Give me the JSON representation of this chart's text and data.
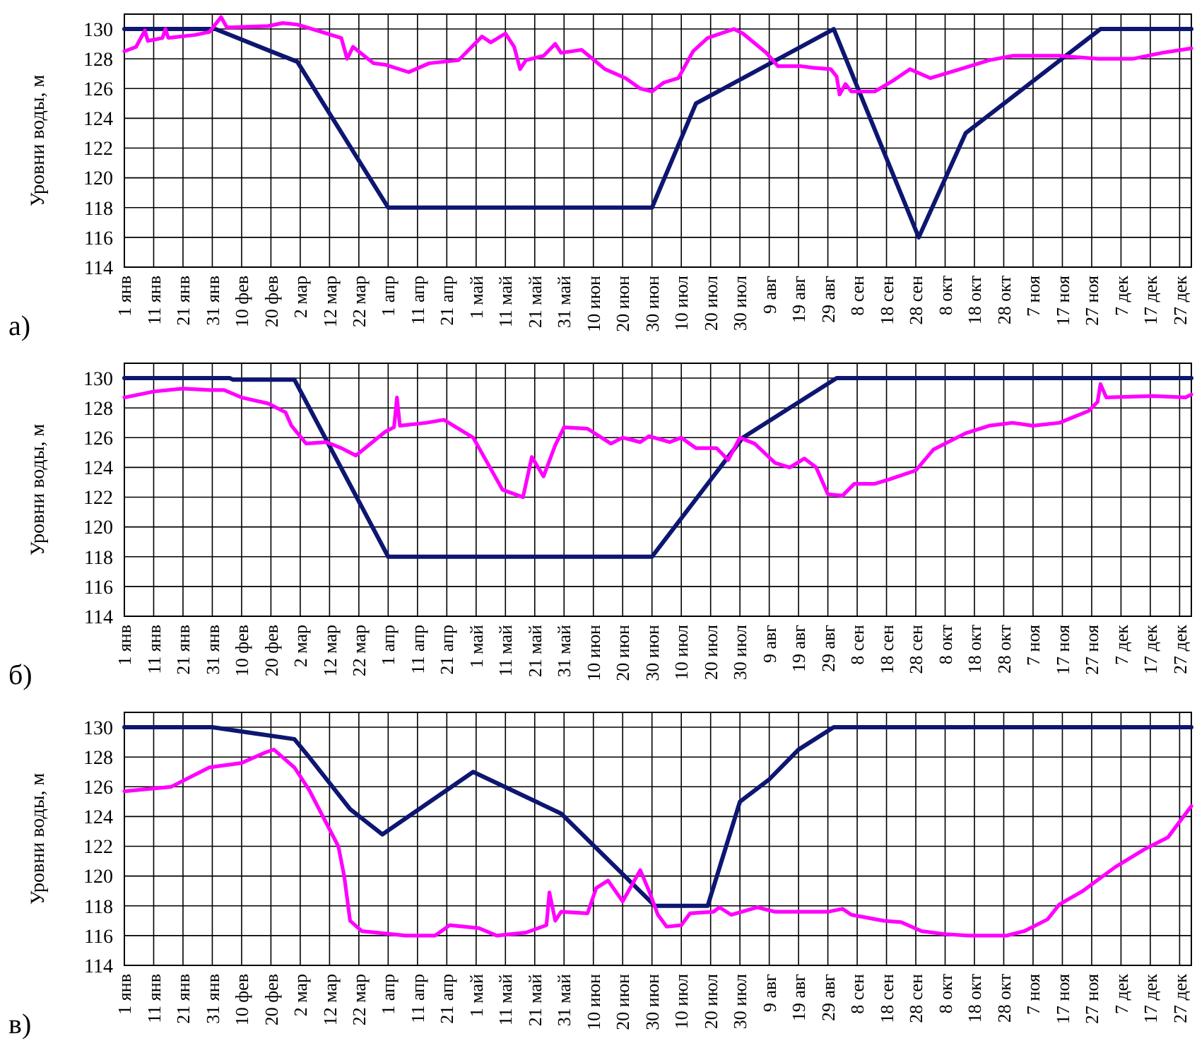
{
  "chart_data": [
    {
      "type": "line",
      "ylabel": "Уровни воды, м",
      "annotations": [
        "а)"
      ],
      "xlim": [
        "--01-01",
        "--12-31"
      ],
      "ylim": [
        114,
        131
      ],
      "yticks": [
        114,
        116,
        118,
        120,
        122,
        124,
        126,
        128,
        130
      ],
      "grid": true,
      "line_style": "solid",
      "xticks": [
        {
          "value": "--01-01",
          "label": "1 янв"
        },
        {
          "value": "--01-11",
          "label": "11 янв"
        },
        {
          "value": "--01-21",
          "label": "21 янв"
        },
        {
          "value": "--01-31",
          "label": "31 янв"
        },
        {
          "value": "--02-10",
          "label": "10 фев"
        },
        {
          "value": "--02-20",
          "label": "20 фев"
        },
        {
          "value": "--03-02",
          "label": "2 мар"
        },
        {
          "value": "--03-12",
          "label": "12 мар"
        },
        {
          "value": "--03-22",
          "label": "22 мар"
        },
        {
          "value": "--04-01",
          "label": "1 апр"
        },
        {
          "value": "--04-11",
          "label": "11 апр"
        },
        {
          "value": "--04-21",
          "label": "21 апр"
        },
        {
          "value": "--05-01",
          "label": "1 май"
        },
        {
          "value": "--05-11",
          "label": "11 май"
        },
        {
          "value": "--05-21",
          "label": "21 май"
        },
        {
          "value": "--05-31",
          "label": "31 май"
        },
        {
          "value": "--06-10",
          "label": "10 июн"
        },
        {
          "value": "--06-20",
          "label": "20 июн"
        },
        {
          "value": "--06-30",
          "label": "30 июн"
        },
        {
          "value": "--07-10",
          "label": "10 июл"
        },
        {
          "value": "--07-20",
          "label": "20 июл"
        },
        {
          "value": "--07-30",
          "label": "30 июл"
        },
        {
          "value": "--08-09",
          "label": "9 авг"
        },
        {
          "value": "--08-19",
          "label": "19 авг"
        },
        {
          "value": "--08-29",
          "label": "29 авг"
        },
        {
          "value": "--09-08",
          "label": "8 сен"
        },
        {
          "value": "--09-18",
          "label": "18 сен"
        },
        {
          "value": "--09-28",
          "label": "28 сен"
        },
        {
          "value": "--10-08",
          "label": "8 окт"
        },
        {
          "value": "--10-18",
          "label": "18 окт"
        },
        {
          "value": "--10-28",
          "label": "28 окт"
        },
        {
          "value": "--11-07",
          "label": "7 ноя"
        },
        {
          "value": "--11-17",
          "label": "17 ноя"
        },
        {
          "value": "--11-27",
          "label": "27 ноя"
        },
        {
          "value": "--12-07",
          "label": "7 дек"
        },
        {
          "value": "--12-17",
          "label": "17 дек"
        },
        {
          "value": "--12-27",
          "label": "27 дек"
        }
      ],
      "series": [
        {
          "color": "#0d1670",
          "x": [
            "--01-01",
            "--02-01",
            "--02-20",
            "--03-01",
            "--04-01",
            "--06-30",
            "--07-15",
            "--08-31",
            "--09-29",
            "--10-15",
            "--11-30",
            "--12-31"
          ],
          "values": [
            130,
            130,
            128.5,
            127.8,
            118,
            118,
            125,
            130,
            116,
            123,
            130,
            130
          ]
        },
        {
          "color": "#ff00ff",
          "x": [
            "--01-01",
            "--01-05",
            "--01-08",
            "--01-09",
            "--01-14",
            "--01-15",
            "--01-16",
            "--01-25",
            "--01-30",
            "--02-03",
            "--02-05",
            "--02-19",
            "--02-24",
            "--03-01",
            "--03-06",
            "--03-16",
            "--03-18",
            "--03-20",
            "--03-27",
            "--03-31",
            "--04-08",
            "--04-15",
            "--04-25",
            "--05-03",
            "--05-06",
            "--05-11",
            "--05-14",
            "--05-16",
            "--05-18",
            "--05-24",
            "--05-28",
            "--05-30",
            "--06-06",
            "--06-14",
            "--06-21",
            "--06-26",
            "--06-30",
            "--07-04",
            "--07-09",
            "--07-14",
            "--07-19",
            "--07-28",
            "--07-31",
            "--08-08",
            "--08-12",
            "--08-20",
            "--08-24",
            "--08-30",
            "--09-01",
            "--09-02",
            "--09-04",
            "--09-06",
            "--09-14",
            "--09-20",
            "--09-26",
            "--10-03",
            "--10-13",
            "--10-23",
            "--10-31",
            "--11-16",
            "--11-29",
            "--12-11",
            "--12-21",
            "--12-31"
          ],
          "values": [
            128.5,
            128.8,
            129.9,
            129.2,
            129.4,
            130,
            129.4,
            129.6,
            129.8,
            130.8,
            130.1,
            130.2,
            130.4,
            130.3,
            130,
            129.4,
            128,
            128.8,
            127.7,
            127.6,
            127.1,
            127.7,
            127.9,
            129.5,
            129.1,
            129.7,
            128.8,
            127.3,
            127.9,
            128.2,
            129,
            128.4,
            128.6,
            127.3,
            126.7,
            126,
            125.8,
            126.4,
            126.7,
            128.5,
            129.4,
            130,
            129.7,
            128.4,
            127.5,
            127.5,
            127.4,
            127.3,
            126.8,
            125.6,
            126.3,
            125.8,
            125.8,
            126.5,
            127.3,
            126.7,
            127.3,
            127.9,
            128.2,
            128.2,
            128,
            128,
            128.4,
            128.7
          ]
        }
      ]
    },
    {
      "type": "line",
      "ylabel": "Уровни воды, м",
      "annotations": [
        "б)"
      ],
      "xlim": [
        "--01-01",
        "--12-31"
      ],
      "ylim": [
        114,
        131
      ],
      "yticks": [
        114,
        116,
        118,
        120,
        122,
        124,
        126,
        128,
        130
      ],
      "grid": true,
      "line_style": "solid",
      "xticks": [
        {
          "value": "--01-01",
          "label": "1 янв"
        },
        {
          "value": "--01-11",
          "label": "11 янв"
        },
        {
          "value": "--01-21",
          "label": "21 янв"
        },
        {
          "value": "--01-31",
          "label": "31 янв"
        },
        {
          "value": "--02-10",
          "label": "10 фев"
        },
        {
          "value": "--02-20",
          "label": "20 фев"
        },
        {
          "value": "--03-02",
          "label": "2 мар"
        },
        {
          "value": "--03-12",
          "label": "12 мар"
        },
        {
          "value": "--03-22",
          "label": "22 мар"
        },
        {
          "value": "--04-01",
          "label": "1 апр"
        },
        {
          "value": "--04-11",
          "label": "11 апр"
        },
        {
          "value": "--04-21",
          "label": "21 апр"
        },
        {
          "value": "--05-01",
          "label": "1 май"
        },
        {
          "value": "--05-11",
          "label": "11 май"
        },
        {
          "value": "--05-21",
          "label": "21 май"
        },
        {
          "value": "--05-31",
          "label": "31 май"
        },
        {
          "value": "--06-10",
          "label": "10 июн"
        },
        {
          "value": "--06-20",
          "label": "20 июн"
        },
        {
          "value": "--06-30",
          "label": "30 июн"
        },
        {
          "value": "--07-10",
          "label": "10 июл"
        },
        {
          "value": "--07-20",
          "label": "20 июл"
        },
        {
          "value": "--07-30",
          "label": "30 июл"
        },
        {
          "value": "--08-09",
          "label": "9 авг"
        },
        {
          "value": "--08-19",
          "label": "19 авг"
        },
        {
          "value": "--08-29",
          "label": "29 авг"
        },
        {
          "value": "--09-08",
          "label": "8 сен"
        },
        {
          "value": "--09-18",
          "label": "18 сен"
        },
        {
          "value": "--09-28",
          "label": "28 сен"
        },
        {
          "value": "--10-08",
          "label": "8 окт"
        },
        {
          "value": "--10-18",
          "label": "18 окт"
        },
        {
          "value": "--10-28",
          "label": "28 окт"
        },
        {
          "value": "--11-07",
          "label": "7 ноя"
        },
        {
          "value": "--11-17",
          "label": "17 ноя"
        },
        {
          "value": "--11-27",
          "label": "27 ноя"
        },
        {
          "value": "--12-07",
          "label": "7 дек"
        },
        {
          "value": "--12-17",
          "label": "17 дек"
        },
        {
          "value": "--12-27",
          "label": "27 дек"
        }
      ],
      "series": [
        {
          "color": "#0d1670",
          "x": [
            "--01-01",
            "--02-06",
            "--02-07",
            "--02-28",
            "--04-01",
            "--06-30",
            "--07-31",
            "--09-01",
            "--12-31"
          ],
          "values": [
            130,
            130,
            129.9,
            129.9,
            118,
            118,
            126,
            130,
            130
          ]
        },
        {
          "color": "#ff00ff",
          "x": [
            "--01-01",
            "--01-11",
            "--01-21",
            "--01-30",
            "--02-04",
            "--02-10",
            "--02-19",
            "--02-25",
            "--02-27",
            "--03-04",
            "--03-11",
            "--03-16",
            "--03-21",
            "--03-31",
            "--04-03",
            "--04-04",
            "--04-05",
            "--04-14",
            "--04-20",
            "--04-30",
            "--05-10",
            "--05-17",
            "--05-20",
            "--05-24",
            "--05-28",
            "--05-31",
            "--06-08",
            "--06-16",
            "--06-20",
            "--06-26",
            "--06-29",
            "--07-06",
            "--07-10",
            "--07-15",
            "--07-22",
            "--07-26",
            "--07-30",
            "--08-04",
            "--08-11",
            "--08-16",
            "--08-21",
            "--08-25",
            "--08-29",
            "--09-03",
            "--09-07",
            "--09-14",
            "--09-19",
            "--09-28",
            "--10-04",
            "--10-15",
            "--10-23",
            "--10-31",
            "--11-07",
            "--11-16",
            "--11-26",
            "--11-29",
            "--11-30",
            "--12-02",
            "--12-18",
            "--12-29",
            "--12-31"
          ],
          "values": [
            128.7,
            129.1,
            129.3,
            129.2,
            129.2,
            128.7,
            128.3,
            127.7,
            126.8,
            125.6,
            125.7,
            125.3,
            124.8,
            126.4,
            126.7,
            128.7,
            126.8,
            127,
            127.2,
            126,
            122.5,
            122,
            124.7,
            123.4,
            125.5,
            126.7,
            126.6,
            125.6,
            126,
            125.7,
            126.1,
            125.7,
            126,
            125.3,
            125.3,
            124.5,
            126,
            125.6,
            124.3,
            124,
            124.6,
            124,
            122.2,
            122.1,
            122.9,
            122.9,
            123.2,
            123.8,
            125.2,
            126.3,
            126.8,
            127,
            126.8,
            127,
            127.8,
            128.4,
            129.6,
            128.7,
            128.8,
            128.7,
            128.9
          ]
        }
      ]
    },
    {
      "type": "line",
      "ylabel": "Уровни воды, м",
      "annotations": [
        "в)"
      ],
      "xlim": [
        "--01-01",
        "--12-31"
      ],
      "ylim": [
        114,
        131
      ],
      "yticks": [
        114,
        116,
        118,
        120,
        122,
        124,
        126,
        128,
        130
      ],
      "grid": true,
      "line_style": "solid",
      "xticks": [
        {
          "value": "--01-01",
          "label": "1 янв"
        },
        {
          "value": "--01-11",
          "label": "11 янв"
        },
        {
          "value": "--01-21",
          "label": "21 янв"
        },
        {
          "value": "--01-31",
          "label": "31 янв"
        },
        {
          "value": "--02-10",
          "label": "10 фев"
        },
        {
          "value": "--02-20",
          "label": "20 фев"
        },
        {
          "value": "--03-02",
          "label": "2 мар"
        },
        {
          "value": "--03-12",
          "label": "12 мар"
        },
        {
          "value": "--03-22",
          "label": "22 мар"
        },
        {
          "value": "--04-01",
          "label": "1 апр"
        },
        {
          "value": "--04-11",
          "label": "11 апр"
        },
        {
          "value": "--04-21",
          "label": "21 апр"
        },
        {
          "value": "--05-01",
          "label": "1 май"
        },
        {
          "value": "--05-11",
          "label": "11 май"
        },
        {
          "value": "--05-21",
          "label": "21 май"
        },
        {
          "value": "--05-31",
          "label": "31 май"
        },
        {
          "value": "--06-10",
          "label": "10 июн"
        },
        {
          "value": "--06-20",
          "label": "20 июн"
        },
        {
          "value": "--06-30",
          "label": "30 июн"
        },
        {
          "value": "--07-10",
          "label": "10 июл"
        },
        {
          "value": "--07-20",
          "label": "20 июл"
        },
        {
          "value": "--07-30",
          "label": "30 июл"
        },
        {
          "value": "--08-09",
          "label": "9 авг"
        },
        {
          "value": "--08-19",
          "label": "19 авг"
        },
        {
          "value": "--08-29",
          "label": "29 авг"
        },
        {
          "value": "--09-08",
          "label": "8 сен"
        },
        {
          "value": "--09-18",
          "label": "18 сен"
        },
        {
          "value": "--09-28",
          "label": "28 сен"
        },
        {
          "value": "--10-08",
          "label": "8 окт"
        },
        {
          "value": "--10-18",
          "label": "18 окт"
        },
        {
          "value": "--10-28",
          "label": "28 окт"
        },
        {
          "value": "--11-07",
          "label": "7 ноя"
        },
        {
          "value": "--11-17",
          "label": "17 ноя"
        },
        {
          "value": "--11-27",
          "label": "27 ноя"
        },
        {
          "value": "--12-07",
          "label": "7 дек"
        },
        {
          "value": "--12-17",
          "label": "17 дек"
        },
        {
          "value": "--12-27",
          "label": "27 дек"
        }
      ],
      "series": [
        {
          "color": "#0d1670",
          "x": [
            "--01-01",
            "--01-31",
            "--02-14",
            "--02-28",
            "--03-05",
            "--03-19",
            "--03-30",
            "--04-30",
            "--05-30",
            "--07-01",
            "--07-19",
            "--07-30",
            "--08-09",
            "--08-19",
            "--08-31",
            "--12-31"
          ],
          "values": [
            130,
            130,
            129.6,
            129.2,
            128,
            124.5,
            122.8,
            127,
            124.2,
            118,
            118,
            125,
            126.5,
            128.5,
            130,
            130
          ]
        },
        {
          "color": "#ff00ff",
          "x": [
            "--01-01",
            "--01-17",
            "--01-30",
            "--02-10",
            "--02-18",
            "--02-21",
            "--02-28",
            "--03-05",
            "--03-15",
            "--03-17",
            "--03-19",
            "--03-23",
            "--03-28",
            "--04-07",
            "--04-17",
            "--04-22",
            "--05-02",
            "--05-08",
            "--05-18",
            "--05-25",
            "--05-26",
            "--05-28",
            "--05-30",
            "--06-08",
            "--06-11",
            "--06-15",
            "--06-20",
            "--06-26",
            "--06-29",
            "--07-02",
            "--07-05",
            "--07-10",
            "--07-13",
            "--07-21",
            "--07-23",
            "--07-27",
            "--08-05",
            "--08-11",
            "--08-29",
            "--09-03",
            "--09-06",
            "--09-17",
            "--09-23",
            "--09-30",
            "--10-08",
            "--10-16",
            "--10-29",
            "--11-04",
            "--11-12",
            "--11-16",
            "--11-24",
            "--12-05",
            "--12-15",
            "--12-23",
            "--12-31"
          ],
          "values": [
            125.7,
            126,
            127.3,
            127.6,
            128.3,
            128.5,
            127.3,
            125.8,
            122,
            120,
            117,
            116.3,
            116.2,
            116,
            116,
            116.7,
            116.5,
            116,
            116.2,
            116.7,
            118.9,
            117,
            117.6,
            117.5,
            119.2,
            119.7,
            118.3,
            120.4,
            119,
            117.4,
            116.6,
            116.7,
            117.5,
            117.6,
            117.9,
            117.4,
            117.9,
            117.6,
            117.6,
            117.8,
            117.4,
            117,
            116.9,
            116.3,
            116.1,
            116,
            116,
            116.3,
            117.1,
            118.1,
            119,
            120.6,
            121.8,
            122.6,
            124.7
          ]
        }
      ]
    }
  ]
}
